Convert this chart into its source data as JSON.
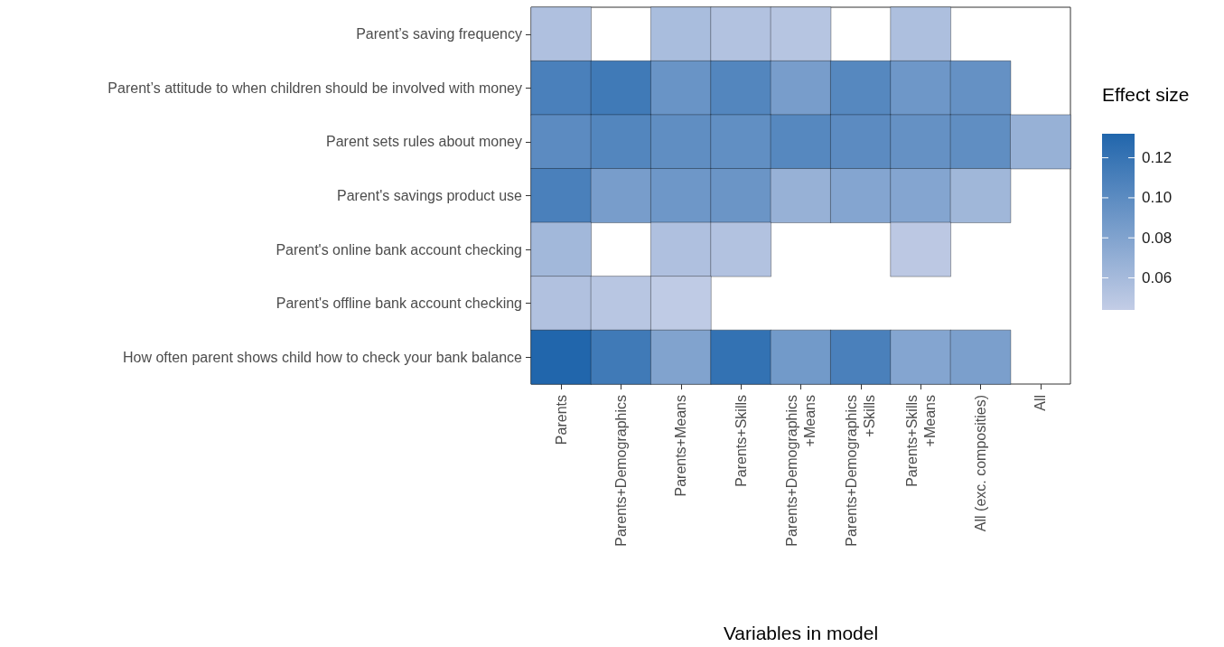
{
  "chart_data": {
    "type": "heatmap",
    "xlabel": "Variables in model",
    "clabel": "Effect size",
    "categories": [
      "Parents",
      "Parents+Demographics",
      "Parents+Means",
      "Parents+Skills",
      "Parents+Demographics\n+Means",
      "Parents+Demographics\n+Skills",
      "Parents+Skills\n+Means",
      "All (exc. composities)",
      "All"
    ],
    "y_categories": [
      "Parent’s saving frequency",
      "Parent’s attitude to when children should be involved with money",
      "Parent sets rules about money",
      "Parent's savings product use",
      "Parent's online bank account checking",
      "Parent's offline bank account checking",
      "How often parent shows child how to check your bank balance"
    ],
    "cells": [
      [
        0.055,
        null,
        0.058,
        0.053,
        0.051,
        null,
        0.056,
        null,
        null
      ],
      [
        0.11,
        0.115,
        0.093,
        0.105,
        0.085,
        0.103,
        0.09,
        0.095,
        null
      ],
      [
        0.1,
        0.105,
        0.098,
        0.097,
        0.103,
        0.1,
        0.095,
        0.098,
        0.068
      ],
      [
        0.11,
        0.085,
        0.09,
        0.092,
        0.068,
        0.078,
        0.078,
        0.063,
        null
      ],
      [
        0.062,
        null,
        0.055,
        0.053,
        null,
        null,
        0.048,
        null,
        null
      ],
      [
        0.054,
        0.05,
        0.046,
        null,
        null,
        null,
        null,
        null,
        null
      ],
      [
        0.132,
        0.115,
        0.08,
        0.122,
        0.088,
        0.11,
        0.078,
        0.083,
        null
      ]
    ],
    "clim": [
      0.044,
      0.132
    ],
    "cticks": [
      {
        "value": 0.06,
        "label": "0.06"
      },
      {
        "value": 0.08,
        "label": "0.08"
      },
      {
        "value": 0.1,
        "label": "0.10"
      },
      {
        "value": 0.12,
        "label": "0.12"
      }
    ]
  }
}
